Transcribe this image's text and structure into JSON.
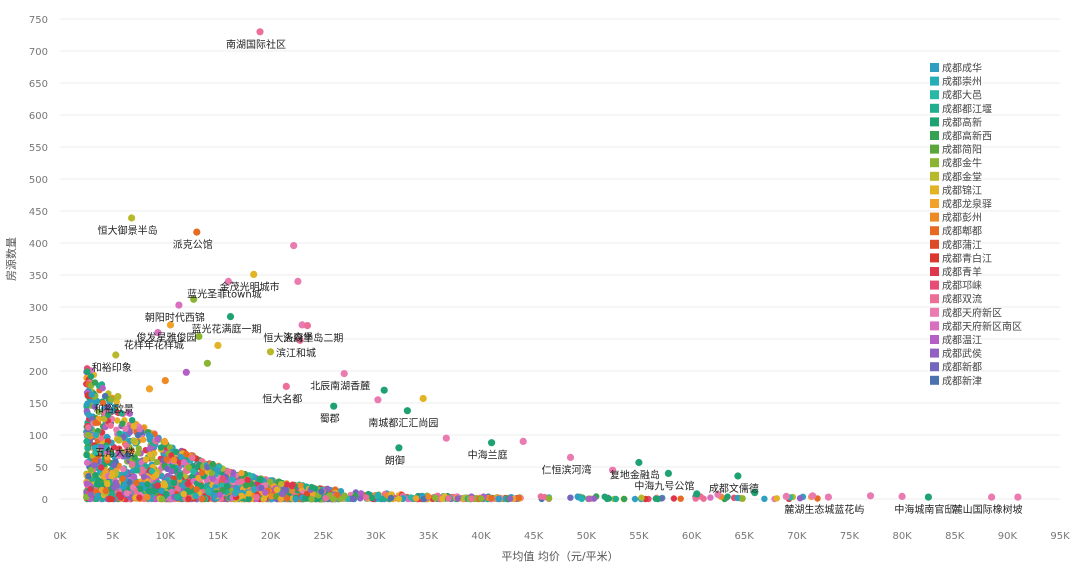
{
  "chart_data": {
    "type": "scatter",
    "xlabel": "平均值 均价（元/平米）",
    "ylabel": "房源数量",
    "xlim": [
      0,
      95000
    ],
    "ylim": [
      0,
      750
    ],
    "x_ticks": [
      0,
      5000,
      10000,
      15000,
      20000,
      25000,
      30000,
      35000,
      40000,
      45000,
      50000,
      55000,
      60000,
      65000,
      70000,
      75000,
      80000,
      85000,
      90000,
      95000
    ],
    "x_tick_labels": [
      "0K",
      "5K",
      "10K",
      "15K",
      "20K",
      "25K",
      "30K",
      "35K",
      "40K",
      "45K",
      "50K",
      "55K",
      "60K",
      "65K",
      "70K",
      "75K",
      "80K",
      "85K",
      "90K",
      "95K"
    ],
    "y_ticks": [
      0,
      50,
      100,
      150,
      200,
      250,
      300,
      350,
      400,
      450,
      500,
      550,
      600,
      650,
      700,
      750
    ],
    "y_tick_labels": [
      "0",
      "50",
      "100",
      "150",
      "200",
      "250",
      "300",
      "350",
      "400",
      "450",
      "500",
      "550",
      "600",
      "650",
      "700",
      "750"
    ],
    "grid": true,
    "legend_position": "right",
    "series": [
      {
        "name": "成都成华",
        "color": "#2e9fc0"
      },
      {
        "name": "成都崇州",
        "color": "#26aeb8"
      },
      {
        "name": "成都大邑",
        "color": "#2ab8a6"
      },
      {
        "name": "成都都江堰",
        "color": "#20ae8e"
      },
      {
        "name": "成都高新",
        "color": "#1fa272"
      },
      {
        "name": "成都高新西",
        "color": "#36a053"
      },
      {
        "name": "成都简阳",
        "color": "#5aa63c"
      },
      {
        "name": "成都金牛",
        "color": "#8ab432"
      },
      {
        "name": "成都金堂",
        "color": "#b7b92a"
      },
      {
        "name": "成都锦江",
        "color": "#e2b324"
      },
      {
        "name": "成都龙泉驿",
        "color": "#f0a22a"
      },
      {
        "name": "成都彭州",
        "color": "#ee8a25"
      },
      {
        "name": "成都郫都",
        "color": "#e66b22"
      },
      {
        "name": "成都蒲江",
        "color": "#dd4a26"
      },
      {
        "name": "成都青白江",
        "color": "#d9372f"
      },
      {
        "name": "成都青羊",
        "color": "#e0364c"
      },
      {
        "name": "成都邛崃",
        "color": "#e74c74"
      },
      {
        "name": "成都双流",
        "color": "#ec6f97"
      },
      {
        "name": "成都天府新区",
        "color": "#e97bb0"
      },
      {
        "name": "成都天府新区南区",
        "color": "#d870bf"
      },
      {
        "name": "成都温江",
        "color": "#b45fc6"
      },
      {
        "name": "成都武侯",
        "color": "#9262c3"
      },
      {
        "name": "成都新都",
        "color": "#7266bd"
      },
      {
        "name": "成都新津",
        "color": "#4c73b0"
      }
    ],
    "points": [
      {
        "x": 19000,
        "y": 730,
        "series": "成都双流",
        "label": "南湖国际社区"
      },
      {
        "x": 6800,
        "y": 439,
        "series": "成都金堂",
        "label": "恒大御景半岛"
      },
      {
        "x": 13000,
        "y": 417,
        "series": "成都郫都",
        "label": "派克公馆"
      },
      {
        "x": 22200,
        "y": 396,
        "series": "成都天府新区",
        "label": ""
      },
      {
        "x": 18400,
        "y": 351,
        "series": "成都锦江",
        "label": "金茂光明城市"
      },
      {
        "x": 16000,
        "y": 340,
        "series": "成都天府新区",
        "label": "蓝光圣菲town城"
      },
      {
        "x": 22600,
        "y": 340,
        "series": "成都天府新区",
        "label": ""
      },
      {
        "x": 12700,
        "y": 312,
        "series": "成都金牛",
        "label": ""
      },
      {
        "x": 11300,
        "y": 303,
        "series": "成都天府新区南区",
        "label": "朝阳时代西锦"
      },
      {
        "x": 16200,
        "y": 285,
        "series": "成都高新",
        "label": "蓝光花满庭一期"
      },
      {
        "x": 10500,
        "y": 272,
        "series": "成都龙泉驿",
        "label": "俊发星雅俊园"
      },
      {
        "x": 23000,
        "y": 272,
        "series": "成都天府新区",
        "label": "洛森堡"
      },
      {
        "x": 23500,
        "y": 271,
        "series": "成都双流",
        "label": "恒大天府半岛二期"
      },
      {
        "x": 9300,
        "y": 260,
        "series": "成都天府新区南区",
        "label": "花样年花样城"
      },
      {
        "x": 22800,
        "y": 248,
        "series": "成都双流",
        "label": "滨江和城"
      },
      {
        "x": 5300,
        "y": 225,
        "series": "成都金堂",
        "label": "和裕印象"
      },
      {
        "x": 27000,
        "y": 196,
        "series": "成都天府新区",
        "label": "北辰南湖香麓"
      },
      {
        "x": 21500,
        "y": 176,
        "series": "成都双流",
        "label": "恒大名都"
      },
      {
        "x": 5500,
        "y": 160,
        "series": "成都金堂",
        "label": "和裕欧景"
      },
      {
        "x": 26000,
        "y": 145,
        "series": "成都高新",
        "label": "蜀郡"
      },
      {
        "x": 33000,
        "y": 138,
        "series": "成都高新",
        "label": "南城都汇汇尚园"
      },
      {
        "x": 5600,
        "y": 92,
        "series": "成都金堂",
        "label": "五角大楼"
      },
      {
        "x": 41000,
        "y": 88,
        "series": "成都高新",
        "label": "中海兰庭"
      },
      {
        "x": 32200,
        "y": 80,
        "series": "成都高新",
        "label": "朗御"
      },
      {
        "x": 48500,
        "y": 65,
        "series": "成都天府新区",
        "label": "仁恒滨河湾"
      },
      {
        "x": 55000,
        "y": 57,
        "series": "成都高新",
        "label": "复地金融岛"
      },
      {
        "x": 57800,
        "y": 40,
        "series": "成都高新",
        "label": "中海九号公馆"
      },
      {
        "x": 64400,
        "y": 36,
        "series": "成都高新",
        "label": "成都文儒德"
      },
      {
        "x": 73000,
        "y": 3,
        "series": "成都天府新区",
        "label": "麓湖生态城蓝花屿"
      },
      {
        "x": 82500,
        "y": 3,
        "series": "成都高新",
        "label": "中海城南官邸"
      },
      {
        "x": 88500,
        "y": 3,
        "series": "成都天府新区",
        "label": "麓山国际橡树坡"
      },
      {
        "x": 13200,
        "y": 254,
        "series": "成都金牛",
        "label": ""
      },
      {
        "x": 15000,
        "y": 240,
        "series": "成都锦江",
        "label": ""
      },
      {
        "x": 20000,
        "y": 230,
        "series": "成都金堂",
        "label": ""
      },
      {
        "x": 14000,
        "y": 212,
        "series": "成都金牛",
        "label": ""
      },
      {
        "x": 12000,
        "y": 198,
        "series": "成都温江",
        "label": ""
      },
      {
        "x": 10000,
        "y": 185,
        "series": "成都彭州",
        "label": ""
      },
      {
        "x": 8500,
        "y": 172,
        "series": "成都龙泉驿",
        "label": ""
      },
      {
        "x": 30200,
        "y": 155,
        "series": "成都天府新区",
        "label": ""
      },
      {
        "x": 34500,
        "y": 157,
        "series": "成都锦江",
        "label": ""
      },
      {
        "x": 30800,
        "y": 170,
        "series": "成都高新",
        "label": ""
      },
      {
        "x": 36700,
        "y": 95,
        "series": "成都天府新区",
        "label": ""
      },
      {
        "x": 44000,
        "y": 90,
        "series": "成都天府新区",
        "label": ""
      },
      {
        "x": 52500,
        "y": 45,
        "series": "成都天府新区",
        "label": ""
      },
      {
        "x": 62500,
        "y": 7,
        "series": "成都天府新区",
        "label": ""
      },
      {
        "x": 69000,
        "y": 4,
        "series": "成都天府新区",
        "label": ""
      },
      {
        "x": 77000,
        "y": 5,
        "series": "成都天府新区",
        "label": ""
      },
      {
        "x": 80000,
        "y": 4,
        "series": "成都天府新区",
        "label": ""
      },
      {
        "x": 91000,
        "y": 3,
        "series": "成都天府新区",
        "label": ""
      },
      {
        "x": 60500,
        "y": 8,
        "series": "成都高新",
        "label": ""
      },
      {
        "x": 66000,
        "y": 10,
        "series": "成都高新",
        "label": ""
      },
      {
        "x": 71500,
        "y": 5,
        "series": "成都天府新区",
        "label": ""
      }
    ]
  }
}
